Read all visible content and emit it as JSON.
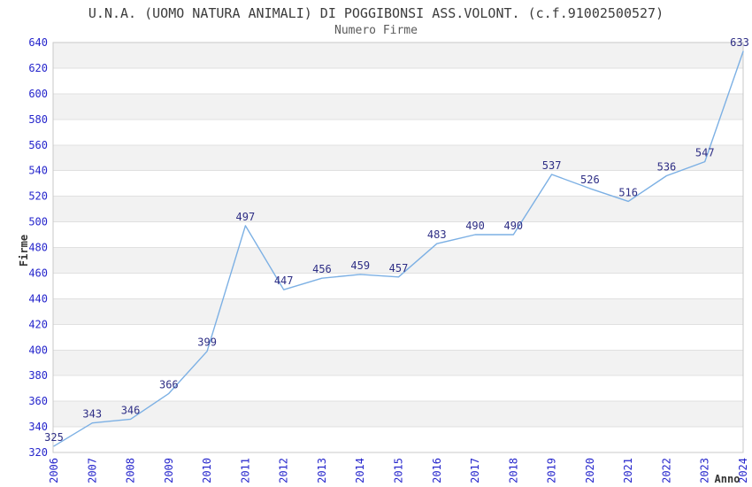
{
  "chart_data": {
    "type": "line",
    "title": "U.N.A. (UOMO NATURA ANIMALI) DI POGGIBONSI ASS.VOLONT. (c.f.91002500527)",
    "subtitle": "Numero Firme",
    "xlabel": "Anno",
    "ylabel": "Firme",
    "categories": [
      "2006",
      "2007",
      "2008",
      "2009",
      "2010",
      "2011",
      "2012",
      "2013",
      "2014",
      "2015",
      "2016",
      "2017",
      "2018",
      "2019",
      "2020",
      "2021",
      "2022",
      "2023",
      "2024"
    ],
    "values": [
      325,
      343,
      346,
      366,
      399,
      497,
      447,
      456,
      459,
      457,
      483,
      490,
      490,
      537,
      526,
      516,
      536,
      547,
      633
    ],
    "ylim": [
      320,
      640
    ],
    "ytick_step": 20,
    "grid": "horizontal-bands",
    "legend_position": "none",
    "data_labels_visible": true,
    "colors": {
      "line": "#7cb0e4",
      "tick_label": "#2626cc",
      "data_label": "#2e2e85",
      "band": "#f2f2f2",
      "band_alt": "#ffffff",
      "gridline": "#e0e0e0",
      "plot_border": "#c8c8c8",
      "title": "#3c3c3c",
      "subtitle": "#5a5a5a",
      "axis_title": "#333333",
      "background": "#ffffff"
    }
  }
}
